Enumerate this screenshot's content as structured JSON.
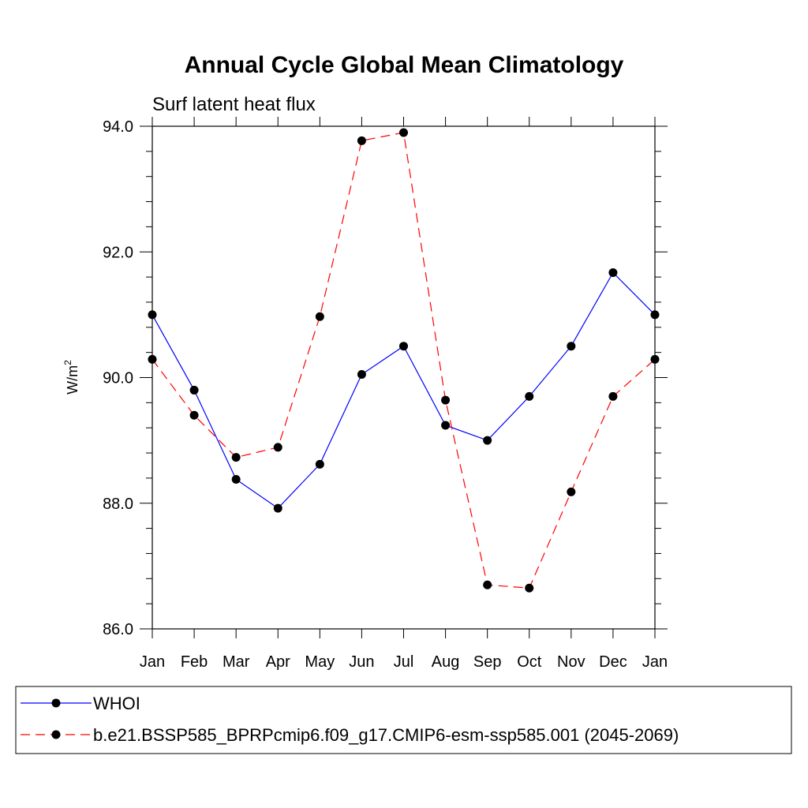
{
  "chart_data": {
    "type": "line",
    "title": "Annual Cycle Global Mean Climatology",
    "subtitle": "Surf latent heat flux",
    "ylabel_main": "W/m",
    "ylabel_sup": "2",
    "xlabel": "",
    "categories": [
      "Jan",
      "Feb",
      "Mar",
      "Apr",
      "May",
      "Jun",
      "Jul",
      "Aug",
      "Sep",
      "Oct",
      "Nov",
      "Dec",
      "Jan"
    ],
    "ylim": [
      86.0,
      94.0
    ],
    "yticks": [
      86.0,
      88.0,
      90.0,
      92.0,
      94.0
    ],
    "ytick_labels": [
      "86.0",
      "88.0",
      "90.0",
      "92.0",
      "94.0"
    ],
    "grid": false,
    "legend_position": "bottom",
    "series": [
      {
        "name": "WHOI",
        "color": "#0000ff",
        "dash": "solid",
        "values": [
          91.0,
          89.8,
          88.38,
          87.92,
          88.62,
          90.05,
          90.5,
          89.24,
          89.0,
          89.7,
          90.5,
          91.67,
          91.0
        ]
      },
      {
        "name": "b.e21.BSSP585_BPRPcmip6.f09_g17.CMIP6-esm-ssp585.001 (2045-2069)",
        "color": "#ff0000",
        "dash": "dashed",
        "values": [
          90.29,
          89.4,
          88.73,
          88.89,
          90.97,
          93.77,
          93.9,
          89.64,
          86.7,
          86.65,
          88.18,
          89.7,
          90.29
        ]
      }
    ]
  }
}
